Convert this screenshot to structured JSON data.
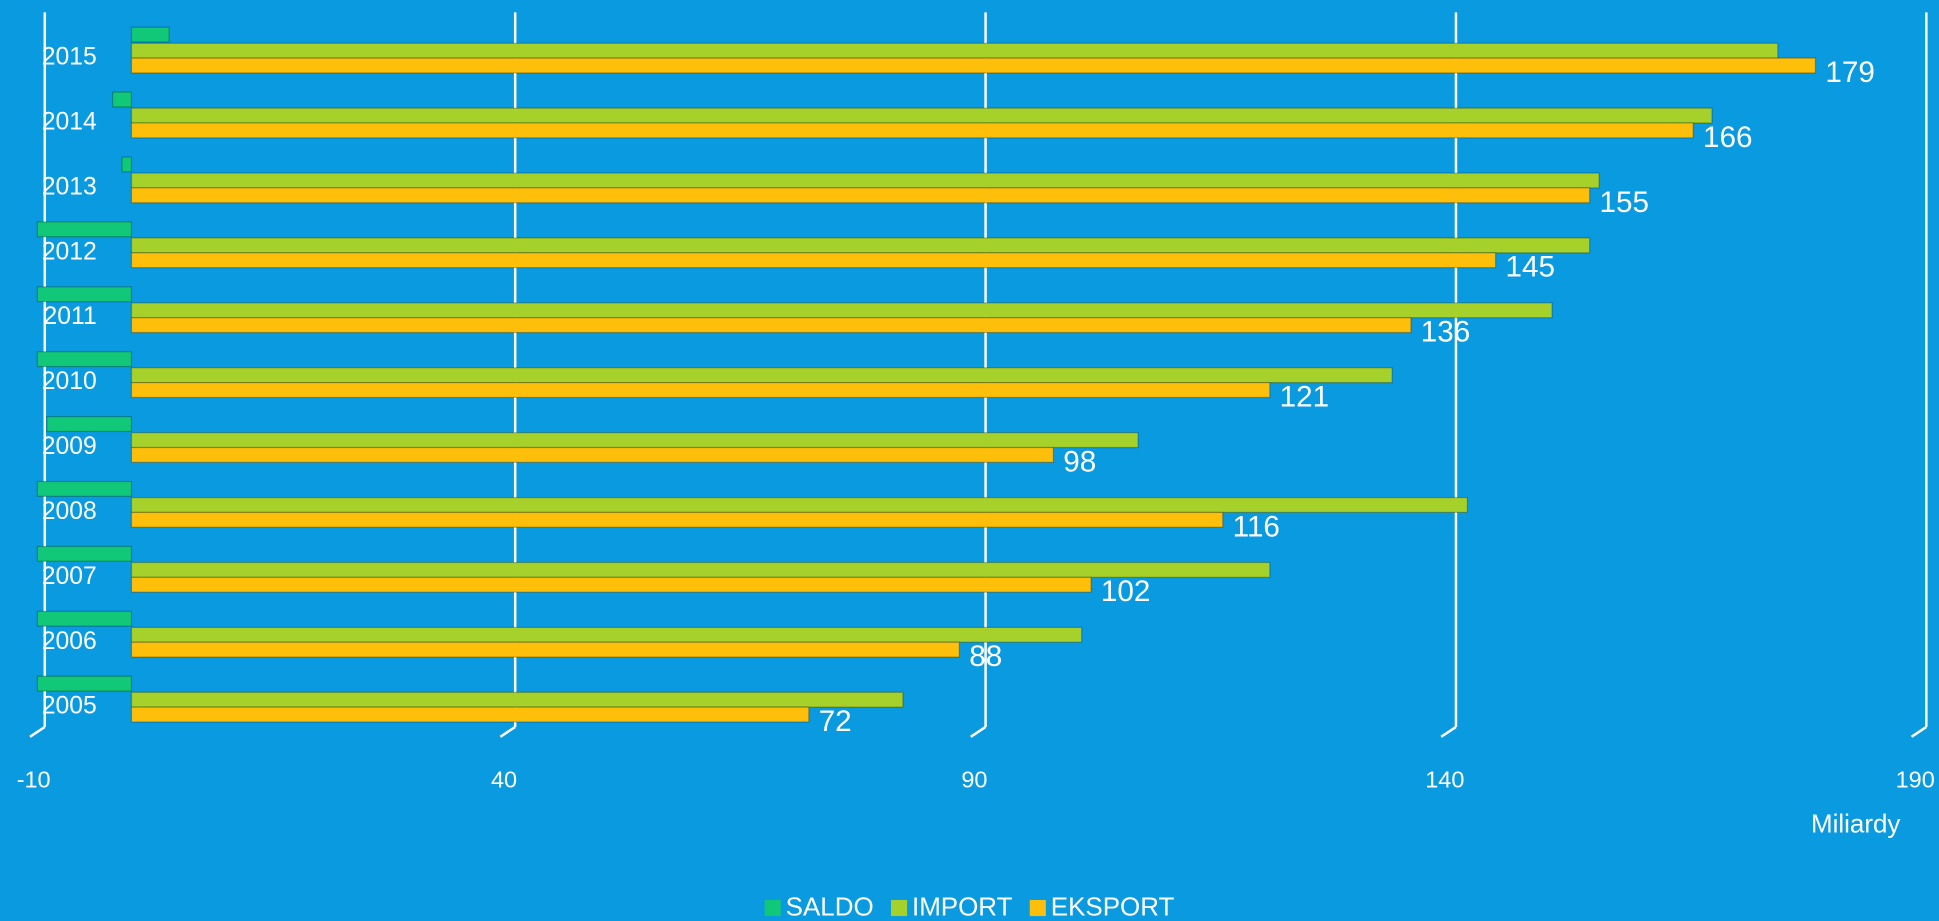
{
  "chart_data": {
    "type": "bar",
    "orientation": "horizontal",
    "categories": [
      "2015",
      "2014",
      "2013",
      "2012",
      "2011",
      "2010",
      "2009",
      "2008",
      "2007",
      "2006",
      "2005"
    ],
    "series": [
      {
        "name": "SALDO",
        "color": "#10c878",
        "values": [
          4,
          -2,
          -1,
          -10,
          -15,
          -13,
          -9,
          -26,
          -19,
          -13,
          -10
        ]
      },
      {
        "name": "IMPORT",
        "color": "#a6d12a",
        "values": [
          175,
          168,
          156,
          155,
          151,
          134,
          107,
          142,
          121,
          101,
          82
        ]
      },
      {
        "name": "EKSPORT",
        "color": "#fdbf0a",
        "values": [
          179,
          166,
          155,
          145,
          136,
          121,
          98,
          116,
          102,
          88,
          72
        ],
        "data_labels": true
      }
    ],
    "xlim": [
      -10,
      190
    ],
    "xticks": [
      -10,
      40,
      90,
      140,
      190
    ],
    "x_label": "Miliardy",
    "grid": true,
    "legend": "bottom"
  }
}
